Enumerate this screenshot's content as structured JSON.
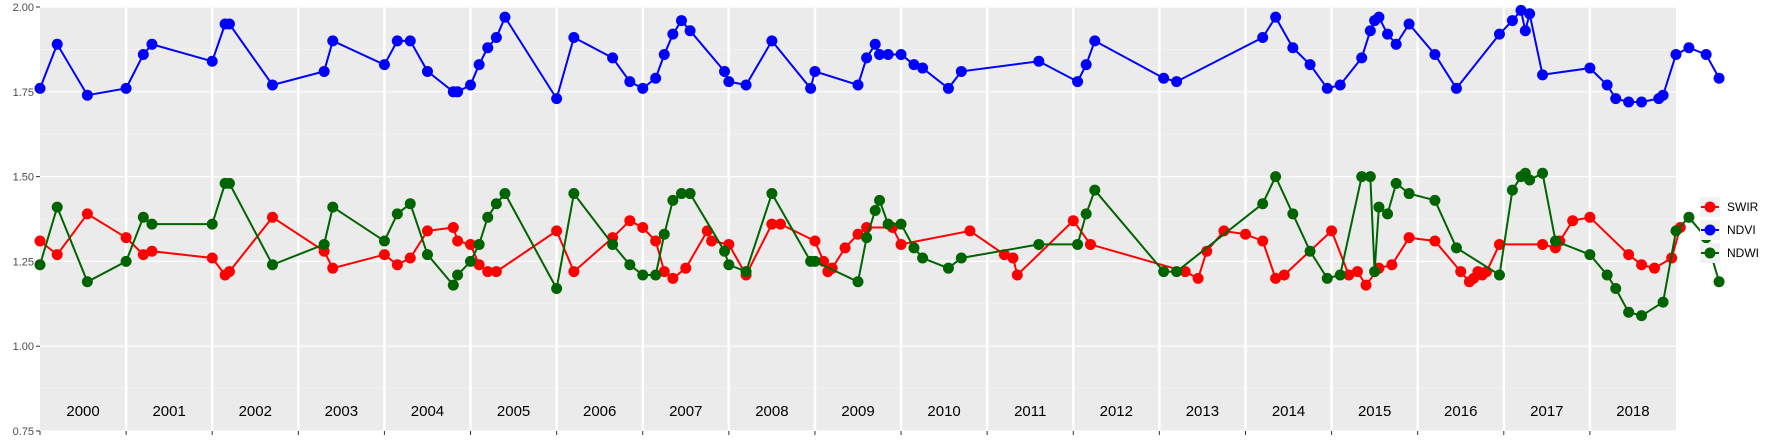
{
  "chart_data": {
    "type": "line",
    "title": "",
    "xlabel": "",
    "ylabel": "",
    "xlim": [
      2000,
      2019
    ],
    "ylim": [
      0.75,
      2.0
    ],
    "y_ticks": [
      "0.75",
      "1.00",
      "1.25",
      "1.50",
      "1.75",
      "2.00"
    ],
    "y_tick_values": [
      0.75,
      1.0,
      1.25,
      1.5,
      1.75,
      2.0
    ],
    "years": [
      "2000",
      "2001",
      "2002",
      "2003",
      "2004",
      "2005",
      "2006",
      "2007",
      "2008",
      "2009",
      "2010",
      "2011",
      "2012",
      "2013",
      "2014",
      "2015",
      "2016",
      "2017",
      "2018"
    ],
    "year_starts": [
      2000,
      2001,
      2002,
      2003,
      2004,
      2005,
      2006,
      2007,
      2008,
      2009,
      2010,
      2011,
      2012,
      2013,
      2014,
      2015,
      2016,
      2017,
      2018
    ],
    "grid": true,
    "legend_position": "right",
    "series": [
      {
        "name": "SWIR",
        "color": "#ff0000",
        "points": [
          [
            2000.0,
            1.31
          ],
          [
            2000.2,
            1.27
          ],
          [
            2000.55,
            1.39
          ],
          [
            2001.0,
            1.32
          ],
          [
            2001.2,
            1.27
          ],
          [
            2001.3,
            1.28
          ],
          [
            2002.0,
            1.26
          ],
          [
            2002.15,
            1.21
          ],
          [
            2002.2,
            1.22
          ],
          [
            2002.7,
            1.38
          ],
          [
            2003.3,
            1.28
          ],
          [
            2003.4,
            1.23
          ],
          [
            2004.0,
            1.27
          ],
          [
            2004.15,
            1.24
          ],
          [
            2004.3,
            1.26
          ],
          [
            2004.5,
            1.34
          ],
          [
            2004.8,
            1.35
          ],
          [
            2004.85,
            1.31
          ],
          [
            2005.0,
            1.3
          ],
          [
            2005.1,
            1.24
          ],
          [
            2005.2,
            1.22
          ],
          [
            2005.3,
            1.22
          ],
          [
            2006.0,
            1.34
          ],
          [
            2006.2,
            1.22
          ],
          [
            2006.65,
            1.32
          ],
          [
            2006.85,
            1.37
          ],
          [
            2007.0,
            1.35
          ],
          [
            2007.15,
            1.31
          ],
          [
            2007.25,
            1.22
          ],
          [
            2007.35,
            1.2
          ],
          [
            2007.5,
            1.23
          ],
          [
            2007.75,
            1.34
          ],
          [
            2007.8,
            1.31
          ],
          [
            2008.0,
            1.3
          ],
          [
            2008.2,
            1.21
          ],
          [
            2008.5,
            1.36
          ],
          [
            2008.6,
            1.36
          ],
          [
            2009.0,
            1.31
          ],
          [
            2009.1,
            1.25
          ],
          [
            2009.15,
            1.22
          ],
          [
            2009.2,
            1.23
          ],
          [
            2009.35,
            1.29
          ],
          [
            2009.5,
            1.33
          ],
          [
            2009.6,
            1.35
          ],
          [
            2009.9,
            1.35
          ],
          [
            2010.0,
            1.3
          ],
          [
            2010.8,
            1.34
          ],
          [
            2011.2,
            1.27
          ],
          [
            2011.3,
            1.26
          ],
          [
            2011.35,
            1.21
          ],
          [
            2012.0,
            1.37
          ],
          [
            2012.2,
            1.3
          ],
          [
            2013.3,
            1.22
          ],
          [
            2013.45,
            1.2
          ],
          [
            2013.55,
            1.28
          ],
          [
            2013.75,
            1.34
          ],
          [
            2014.0,
            1.33
          ],
          [
            2014.2,
            1.31
          ],
          [
            2014.35,
            1.2
          ],
          [
            2014.45,
            1.21
          ],
          [
            2015.0,
            1.34
          ],
          [
            2015.2,
            1.21
          ],
          [
            2015.3,
            1.22
          ],
          [
            2015.4,
            1.18
          ],
          [
            2015.55,
            1.23
          ],
          [
            2015.7,
            1.24
          ],
          [
            2015.9,
            1.32
          ],
          [
            2016.2,
            1.31
          ],
          [
            2016.5,
            1.22
          ],
          [
            2016.6,
            1.19
          ],
          [
            2016.65,
            1.2
          ],
          [
            2016.7,
            1.22
          ],
          [
            2016.75,
            1.21
          ],
          [
            2016.8,
            1.22
          ],
          [
            2016.95,
            1.3
          ],
          [
            2017.45,
            1.3
          ],
          [
            2017.6,
            1.29
          ],
          [
            2017.65,
            1.31
          ],
          [
            2017.8,
            1.37
          ],
          [
            2018.0,
            1.38
          ],
          [
            2018.45,
            1.27
          ],
          [
            2018.6,
            1.24
          ],
          [
            2018.75,
            1.23
          ],
          [
            2018.95,
            1.26
          ],
          [
            2019.05,
            1.35
          ]
        ]
      },
      {
        "name": "NDVI",
        "color": "#0000ff",
        "points": [
          [
            2000.0,
            1.76
          ],
          [
            2000.2,
            1.89
          ],
          [
            2000.55,
            1.74
          ],
          [
            2001.0,
            1.76
          ],
          [
            2001.2,
            1.86
          ],
          [
            2001.3,
            1.89
          ],
          [
            2002.0,
            1.84
          ],
          [
            2002.15,
            1.95
          ],
          [
            2002.2,
            1.95
          ],
          [
            2002.7,
            1.77
          ],
          [
            2003.3,
            1.81
          ],
          [
            2003.4,
            1.9
          ],
          [
            2004.0,
            1.83
          ],
          [
            2004.15,
            1.9
          ],
          [
            2004.3,
            1.9
          ],
          [
            2004.5,
            1.81
          ],
          [
            2004.8,
            1.75
          ],
          [
            2004.85,
            1.75
          ],
          [
            2005.0,
            1.77
          ],
          [
            2005.1,
            1.83
          ],
          [
            2005.2,
            1.88
          ],
          [
            2005.3,
            1.91
          ],
          [
            2005.4,
            1.97
          ],
          [
            2006.0,
            1.73
          ],
          [
            2006.2,
            1.91
          ],
          [
            2006.65,
            1.85
          ],
          [
            2006.85,
            1.78
          ],
          [
            2007.0,
            1.76
          ],
          [
            2007.15,
            1.79
          ],
          [
            2007.25,
            1.86
          ],
          [
            2007.35,
            1.92
          ],
          [
            2007.45,
            1.96
          ],
          [
            2007.55,
            1.93
          ],
          [
            2007.95,
            1.81
          ],
          [
            2008.0,
            1.78
          ],
          [
            2008.2,
            1.77
          ],
          [
            2008.5,
            1.9
          ],
          [
            2008.95,
            1.76
          ],
          [
            2009.0,
            1.81
          ],
          [
            2009.5,
            1.77
          ],
          [
            2009.6,
            1.85
          ],
          [
            2009.7,
            1.89
          ],
          [
            2009.75,
            1.86
          ],
          [
            2009.85,
            1.86
          ],
          [
            2010.0,
            1.86
          ],
          [
            2010.15,
            1.83
          ],
          [
            2010.25,
            1.82
          ],
          [
            2010.55,
            1.76
          ],
          [
            2010.7,
            1.81
          ],
          [
            2011.6,
            1.84
          ],
          [
            2012.05,
            1.78
          ],
          [
            2012.15,
            1.83
          ],
          [
            2012.25,
            1.9
          ],
          [
            2013.05,
            1.79
          ],
          [
            2013.2,
            1.78
          ],
          [
            2014.2,
            1.91
          ],
          [
            2014.35,
            1.97
          ],
          [
            2014.55,
            1.88
          ],
          [
            2014.75,
            1.83
          ],
          [
            2014.95,
            1.76
          ],
          [
            2015.1,
            1.77
          ],
          [
            2015.35,
            1.85
          ],
          [
            2015.45,
            1.93
          ],
          [
            2015.5,
            1.96
          ],
          [
            2015.55,
            1.97
          ],
          [
            2015.65,
            1.92
          ],
          [
            2015.75,
            1.89
          ],
          [
            2015.9,
            1.95
          ],
          [
            2016.2,
            1.86
          ],
          [
            2016.45,
            1.76
          ],
          [
            2016.95,
            1.92
          ],
          [
            2017.1,
            1.96
          ],
          [
            2017.2,
            1.99
          ],
          [
            2017.25,
            1.93
          ],
          [
            2017.3,
            1.98
          ],
          [
            2017.45,
            1.8
          ],
          [
            2018.0,
            1.82
          ],
          [
            2018.2,
            1.77
          ],
          [
            2018.3,
            1.73
          ],
          [
            2018.45,
            1.72
          ],
          [
            2018.6,
            1.72
          ],
          [
            2018.8,
            1.73
          ],
          [
            2018.85,
            1.74
          ],
          [
            2019.0,
            1.86
          ],
          [
            2019.15,
            1.88
          ],
          [
            2019.35,
            1.86
          ],
          [
            2019.5,
            1.79
          ]
        ]
      },
      {
        "name": "NDWI",
        "color": "#006400",
        "points": [
          [
            2000.0,
            1.24
          ],
          [
            2000.2,
            1.41
          ],
          [
            2000.55,
            1.19
          ],
          [
            2001.0,
            1.25
          ],
          [
            2001.2,
            1.38
          ],
          [
            2001.3,
            1.36
          ],
          [
            2002.0,
            1.36
          ],
          [
            2002.15,
            1.48
          ],
          [
            2002.2,
            1.48
          ],
          [
            2002.7,
            1.24
          ],
          [
            2003.3,
            1.3
          ],
          [
            2003.4,
            1.41
          ],
          [
            2004.0,
            1.31
          ],
          [
            2004.15,
            1.39
          ],
          [
            2004.3,
            1.42
          ],
          [
            2004.5,
            1.27
          ],
          [
            2004.8,
            1.18
          ],
          [
            2004.85,
            1.21
          ],
          [
            2005.0,
            1.25
          ],
          [
            2005.1,
            1.3
          ],
          [
            2005.2,
            1.38
          ],
          [
            2005.3,
            1.42
          ],
          [
            2005.4,
            1.45
          ],
          [
            2006.0,
            1.17
          ],
          [
            2006.2,
            1.45
          ],
          [
            2006.65,
            1.3
          ],
          [
            2006.85,
            1.24
          ],
          [
            2007.0,
            1.21
          ],
          [
            2007.15,
            1.21
          ],
          [
            2007.25,
            1.33
          ],
          [
            2007.35,
            1.43
          ],
          [
            2007.45,
            1.45
          ],
          [
            2007.55,
            1.45
          ],
          [
            2007.95,
            1.28
          ],
          [
            2008.0,
            1.24
          ],
          [
            2008.2,
            1.22
          ],
          [
            2008.5,
            1.45
          ],
          [
            2008.95,
            1.25
          ],
          [
            2009.0,
            1.25
          ],
          [
            2009.5,
            1.19
          ],
          [
            2009.6,
            1.32
          ],
          [
            2009.7,
            1.4
          ],
          [
            2009.75,
            1.43
          ],
          [
            2009.85,
            1.36
          ],
          [
            2010.0,
            1.36
          ],
          [
            2010.15,
            1.29
          ],
          [
            2010.25,
            1.26
          ],
          [
            2010.55,
            1.23
          ],
          [
            2010.7,
            1.26
          ],
          [
            2011.6,
            1.3
          ],
          [
            2012.05,
            1.3
          ],
          [
            2012.15,
            1.39
          ],
          [
            2012.25,
            1.46
          ],
          [
            2013.05,
            1.22
          ],
          [
            2013.2,
            1.22
          ],
          [
            2014.2,
            1.42
          ],
          [
            2014.35,
            1.5
          ],
          [
            2014.55,
            1.39
          ],
          [
            2014.75,
            1.28
          ],
          [
            2014.95,
            1.2
          ],
          [
            2015.1,
            1.21
          ],
          [
            2015.35,
            1.5
          ],
          [
            2015.45,
            1.5
          ],
          [
            2015.5,
            1.22
          ],
          [
            2015.55,
            1.41
          ],
          [
            2015.65,
            1.39
          ],
          [
            2015.75,
            1.48
          ],
          [
            2015.9,
            1.45
          ],
          [
            2016.2,
            1.43
          ],
          [
            2016.45,
            1.29
          ],
          [
            2016.95,
            1.21
          ],
          [
            2017.1,
            1.46
          ],
          [
            2017.2,
            1.5
          ],
          [
            2017.25,
            1.51
          ],
          [
            2017.3,
            1.49
          ],
          [
            2017.45,
            1.51
          ],
          [
            2017.6,
            1.31
          ],
          [
            2018.0,
            1.27
          ],
          [
            2018.2,
            1.21
          ],
          [
            2018.3,
            1.17
          ],
          [
            2018.45,
            1.1
          ],
          [
            2018.6,
            1.09
          ],
          [
            2018.85,
            1.13
          ],
          [
            2019.0,
            1.34
          ],
          [
            2019.15,
            1.38
          ],
          [
            2019.35,
            1.32
          ],
          [
            2019.5,
            1.19
          ]
        ]
      }
    ],
    "legend": [
      {
        "label": "SWIR",
        "color": "#ff0000"
      },
      {
        "label": "NDVI",
        "color": "#0000ff"
      },
      {
        "label": "NDWI",
        "color": "#006400"
      }
    ]
  }
}
